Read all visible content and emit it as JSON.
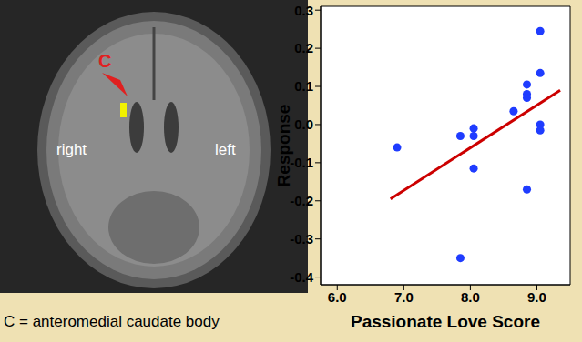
{
  "chart_data": {
    "type": "scatter",
    "x_label": "Passionate Love Score",
    "y_label": "Response",
    "series": [
      {
        "color": "#1f3cff",
        "marker": "circle",
        "x": [
          6.9,
          7.85,
          7.85,
          8.05,
          8.05,
          8.05,
          8.65,
          8.85,
          8.85,
          8.85,
          8.85,
          9.05,
          9.05,
          9.05,
          9.05
        ],
        "values": [
          -0.06,
          -0.35,
          -0.03,
          -0.01,
          -0.03,
          -0.115,
          0.035,
          0.105,
          0.08,
          0.07,
          -0.17,
          0.245,
          0.135,
          0.0,
          -0.015
        ]
      }
    ],
    "trend_line": {
      "x": [
        6.8,
        9.35
      ],
      "values": [
        -0.195,
        0.09
      ],
      "color": "#cc0000"
    },
    "xlim": [
      5.75,
      9.5
    ],
    "xticks": [
      {
        "value": 6,
        "label": "6.0"
      },
      {
        "value": 7,
        "label": "7.0"
      },
      {
        "value": 8,
        "label": "8.0"
      },
      {
        "value": 9,
        "label": "9.0"
      }
    ],
    "ylim": [
      -0.42,
      0.31
    ],
    "yticks": [
      0.3,
      0.2,
      0.1,
      {
        "value": 0,
        "label": "0.0"
      },
      -0.1,
      -0.2,
      -0.3,
      -0.4
    ],
    "grid": false
  },
  "image_panel": {
    "pointer_label": "C",
    "left_text": "right",
    "right_text": "left",
    "caption": "C = anteromedial caudate body"
  }
}
